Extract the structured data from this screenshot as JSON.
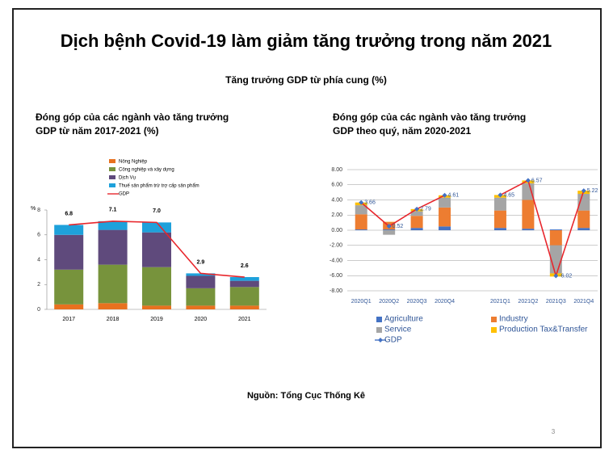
{
  "title": "Dịch bệnh Covid-19 làm giảm tăng trưởng trong năm 2021",
  "subtitle": "Tăng trưởng GDP từ phía cung (%)",
  "source": "Nguồn: Tổng Cục Thống Kê",
  "page_number": "3",
  "chart_data": [
    {
      "type": "bar",
      "stacked": true,
      "title": [
        "Đóng góp của các ngành vào tăng trưởng",
        "GDP từ năm 2017-2021 (%)"
      ],
      "y_label": "%",
      "categories": [
        "2017",
        "2018",
        "2019",
        "2020",
        "2021"
      ],
      "series": [
        {
          "name": "Nông Nghiệp",
          "color": "#e8711f",
          "values": [
            0.4,
            0.5,
            0.3,
            0.3,
            0.3
          ]
        },
        {
          "name": "Công nghiệp và xây dựng",
          "color": "#77933c",
          "values": [
            2.8,
            3.1,
            3.1,
            1.4,
            1.5
          ]
        },
        {
          "name": "Dịch Vụ",
          "color": "#5f4a7c",
          "values": [
            2.8,
            2.8,
            2.8,
            1.0,
            0.5
          ]
        },
        {
          "name": "Thuế sản phẩm trừ trợ cấp sản phẩm",
          "color": "#1ea1db",
          "values": [
            0.8,
            0.7,
            0.8,
            0.2,
            0.3
          ]
        },
        {
          "name": "GDP",
          "type": "line",
          "color": "#e8262c",
          "values": [
            6.8,
            7.1,
            7.0,
            2.9,
            2.6
          ],
          "value_labels": [
            "6.8",
            "7.1",
            "7.0",
            "2.9",
            "2.6"
          ]
        }
      ],
      "ylim": [
        0,
        8
      ],
      "yticks": [
        0,
        2,
        4,
        6,
        8
      ],
      "grid": false,
      "legend": "top"
    },
    {
      "type": "bar",
      "stacked": true,
      "title": [
        "Đóng góp của các ngành vào tăng trưởng",
        "GDP theo quý, năm 2020-2021"
      ],
      "categories": [
        "2020Q1",
        "2020Q2",
        "2020Q3",
        "2020Q4",
        null,
        "2021Q1",
        "2021Q2",
        "2021Q3",
        "2021Q4"
      ],
      "series": [
        {
          "name": "Agriculture",
          "color": "#4472c4",
          "values": [
            0.1,
            0.1,
            0.3,
            0.5,
            null,
            0.3,
            0.2,
            0.1,
            0.3
          ]
        },
        {
          "name": "Industry",
          "color": "#ed7d31",
          "values": [
            2.0,
            1.0,
            1.6,
            2.5,
            null,
            2.3,
            3.8,
            -2.0,
            2.3
          ]
        },
        {
          "name": "Service",
          "color": "#a5a5a5",
          "values": [
            1.2,
            -0.6,
            0.6,
            1.3,
            null,
            1.7,
            2.2,
            -3.7,
            2.2
          ]
        },
        {
          "name": "Production Tax&Transfer",
          "color": "#ffc000",
          "values": [
            0.36,
            0.02,
            0.29,
            0.31,
            null,
            0.35,
            0.37,
            -0.42,
            0.42
          ]
        },
        {
          "name": "GDP",
          "type": "line",
          "color": "#e8262c",
          "marker": "diamond",
          "marker_color": "#4472c4",
          "values": [
            3.66,
            0.52,
            2.79,
            4.61,
            null,
            4.65,
            6.57,
            -6.02,
            5.22
          ]
        }
      ],
      "ylim": [
        -8,
        8
      ],
      "yticks": [
        {
          "value": -8,
          "label": "-8.00"
        },
        {
          "value": -6,
          "label": "-6.00"
        },
        {
          "value": -4,
          "label": "-4.00"
        },
        {
          "value": -2,
          "label": "-2.00"
        },
        {
          "value": 0,
          "label": "0.00"
        },
        {
          "value": 2,
          "label": "2.00"
        },
        {
          "value": 4,
          "label": "4.00"
        },
        {
          "value": 6,
          "label": "6.00"
        },
        {
          "value": 8,
          "label": "8.00"
        }
      ],
      "grid": true,
      "legend": "bottom"
    }
  ]
}
